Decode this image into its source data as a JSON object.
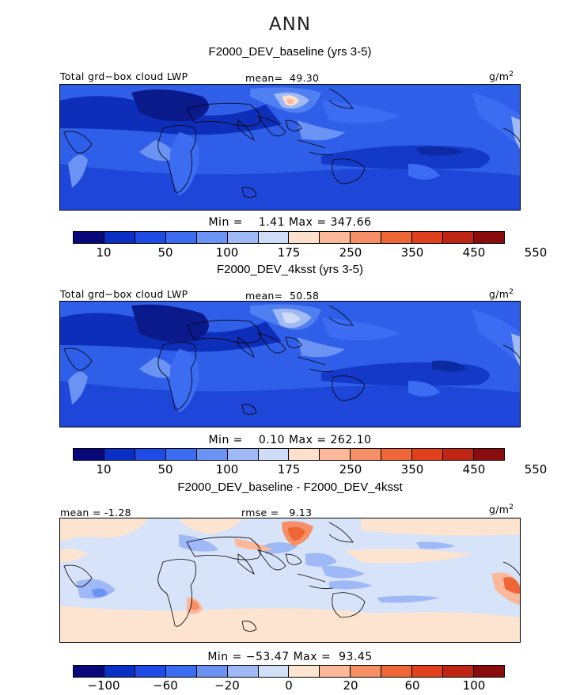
{
  "title": "ANN",
  "panels": [
    {
      "title": "F2000_DEV_baseline (yrs 3-5)",
      "left_label": "Total grd−box cloud LWP",
      "mean_label": "mean=",
      "mean_value": "49.30",
      "units": "g/m",
      "units_sup": "2",
      "min_label": "Min =",
      "min_value": "1.41",
      "max_label": "Max =",
      "max_value": "347.66",
      "colorbar_ticks": [
        "10",
        "50",
        "100",
        "175",
        "250",
        "350",
        "450",
        "550"
      ]
    },
    {
      "title": "F2000_DEV_4ksst (yrs 3-5)",
      "left_label": "Total grd−box cloud LWP",
      "mean_label": "mean=",
      "mean_value": "50.58",
      "units": "g/m",
      "units_sup": "2",
      "min_label": "Min =",
      "min_value": "0.10",
      "max_label": "Max =",
      "max_value": "262.10",
      "colorbar_ticks": [
        "10",
        "50",
        "100",
        "175",
        "250",
        "350",
        "450",
        "550"
      ]
    },
    {
      "title": "F2000_DEV_baseline - F2000_DEV_4ksst",
      "left_label": "mean =",
      "left_value": "-1.28",
      "rmse_label": "rmse =",
      "rmse_value": "9.13",
      "units": "g/m",
      "units_sup": "2",
      "min_label": "Min =",
      "min_value": "−53.47",
      "max_label": "Max =",
      "max_value": "93.45",
      "colorbar_ticks": [
        "−100",
        "−60",
        "−20",
        "0",
        "20",
        "60",
        "100"
      ]
    }
  ],
  "colors": {
    "abs_scale": [
      "#08087a",
      "#0a2fc4",
      "#1e4ae6",
      "#3c6cf2",
      "#6b93f4",
      "#9fb8f6",
      "#cfdcf8",
      "#fde0cc",
      "#fbb89a",
      "#f68e66",
      "#ef6636",
      "#e0401c",
      "#c02412",
      "#8a0c0c"
    ],
    "diff_scale": [
      "#08087a",
      "#0a2fc4",
      "#1e4ae6",
      "#3c6cf2",
      "#6b93f4",
      "#9fb8f6",
      "#cfe0f8",
      "#fde4d0",
      "#fbb89a",
      "#f68e66",
      "#ef6636",
      "#e0401c",
      "#c02412",
      "#8a0c0c"
    ]
  },
  "chart_data": [
    {
      "type": "heatmap",
      "title": "F2000_DEV_baseline (yrs 3-5)",
      "variable": "Total grd-box cloud LWP",
      "units": "g/m2",
      "mean": 49.3,
      "min": 1.41,
      "max": 347.66,
      "contour_levels": [
        10,
        25,
        50,
        75,
        100,
        125,
        175,
        200,
        250,
        300,
        350,
        400,
        450,
        500,
        550
      ]
    },
    {
      "type": "heatmap",
      "title": "F2000_DEV_4ksst (yrs 3-5)",
      "variable": "Total grd-box cloud LWP",
      "units": "g/m2",
      "mean": 50.58,
      "min": 0.1,
      "max": 262.1,
      "contour_levels": [
        10,
        25,
        50,
        75,
        100,
        125,
        175,
        200,
        250,
        300,
        350,
        400,
        450,
        500,
        550
      ]
    },
    {
      "type": "heatmap",
      "title": "F2000_DEV_baseline - F2000_DEV_4ksst",
      "units": "g/m2",
      "mean": -1.28,
      "rmse": 9.13,
      "min": -53.47,
      "max": 93.45,
      "contour_levels": [
        -100,
        -80,
        -60,
        -40,
        -20,
        -10,
        0,
        10,
        20,
        40,
        60,
        80,
        100
      ]
    }
  ]
}
